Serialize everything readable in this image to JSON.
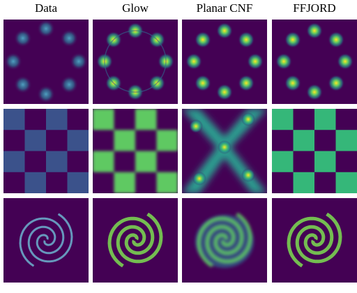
{
  "columns": [
    "Data",
    "Glow",
    "Planar CNF",
    "FFJORD"
  ]
}
